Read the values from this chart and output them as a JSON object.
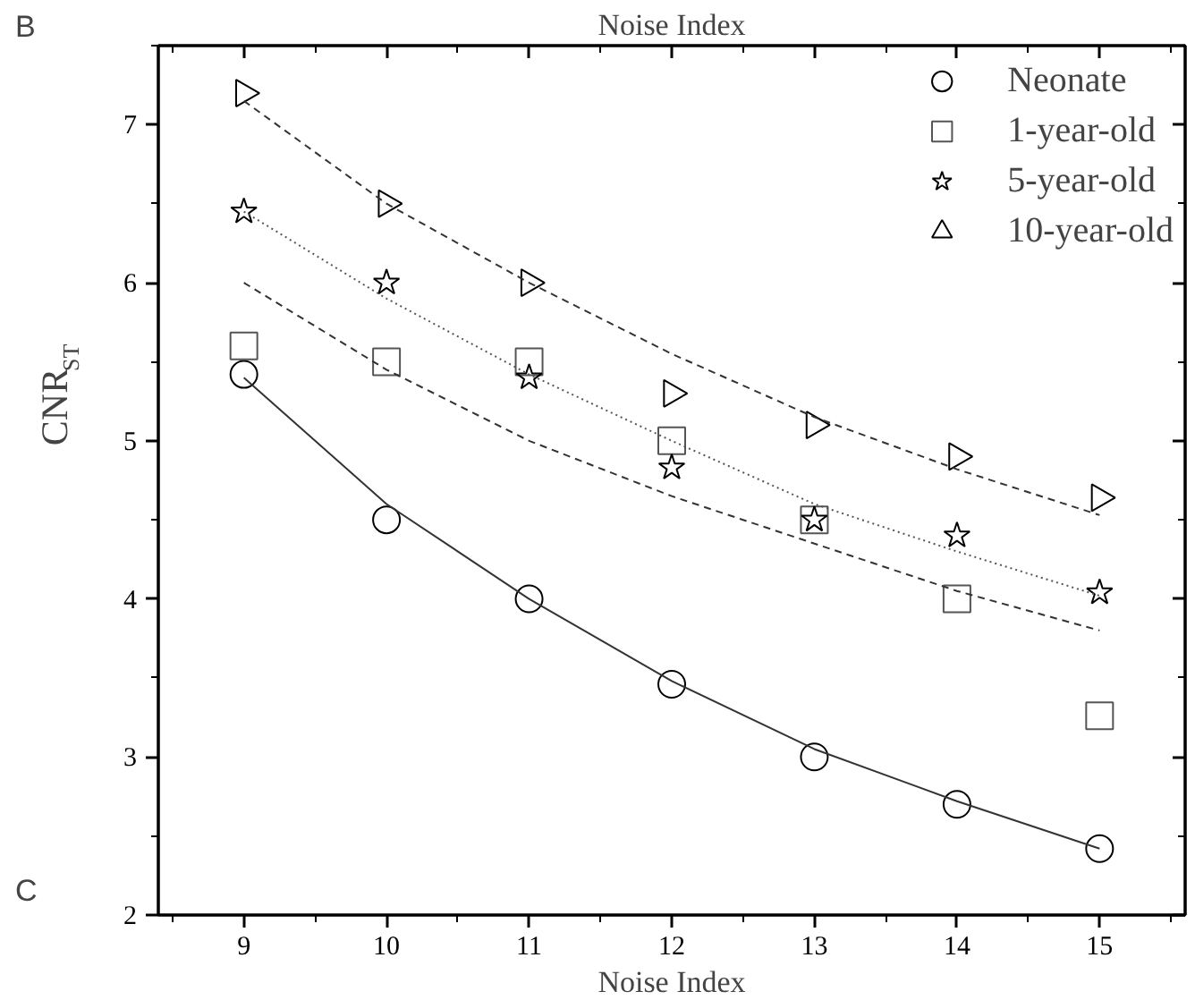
{
  "chart_data": {
    "type": "scatter",
    "title": "Noise Index",
    "ylabel": "CNR$_{ST}$",
    "annotations": [
      "B",
      "C",
      "Noise Index"
    ],
    "x": [
      9,
      10,
      11,
      12,
      13,
      14,
      15
    ],
    "series": [
      {
        "name": "Neonate",
        "color": "#000000",
        "marker": "circle",
        "values": [
          5.42,
          4.5,
          4.0,
          3.46,
          3.0,
          2.7,
          2.42
        ]
      },
      {
        "name": "1-year-old",
        "color": "#555555",
        "marker": "square",
        "values": [
          5.6,
          5.5,
          5.5,
          5.0,
          4.5,
          4.0,
          3.26
        ]
      },
      {
        "name": "5-year-old",
        "color": "#000000",
        "marker": "star",
        "values": [
          6.45,
          6.0,
          5.4,
          4.83,
          4.5,
          4.4,
          4.04
        ]
      },
      {
        "name": "10-year-old",
        "color": "#000000",
        "marker": "triangle",
        "values": [
          7.2,
          6.5,
          6.0,
          5.3,
          5.1,
          4.9,
          4.64
        ]
      },
      {
        "type": "line",
        "color": "#333333",
        "line_style": "solid",
        "marker": "none",
        "values": [
          5.4,
          4.6,
          4.0,
          3.48,
          3.05,
          2.72,
          2.42
        ]
      },
      {
        "type": "line",
        "color": "#333333",
        "line_style": "dashed",
        "marker": "none",
        "values": [
          6.0,
          5.45,
          5.0,
          4.65,
          4.35,
          4.05,
          3.8
        ]
      },
      {
        "type": "line",
        "color": "#555555",
        "line_style": "dotted",
        "marker": "none",
        "values": [
          6.45,
          5.9,
          5.42,
          5.0,
          4.6,
          4.3,
          4.02
        ]
      },
      {
        "type": "line",
        "color": "#333333",
        "line_style": "dashed",
        "marker": "none",
        "values": [
          7.15,
          6.5,
          6.0,
          5.55,
          5.15,
          4.82,
          4.53
        ]
      }
    ],
    "xlim": [
      8.4,
      15.6
    ],
    "xticks": [
      9,
      10,
      11,
      12,
      13,
      14,
      15
    ],
    "ylim": [
      2,
      7.5
    ],
    "yticks": [
      2,
      3,
      4,
      5,
      6,
      7
    ],
    "grid": false,
    "legend": "top right"
  }
}
